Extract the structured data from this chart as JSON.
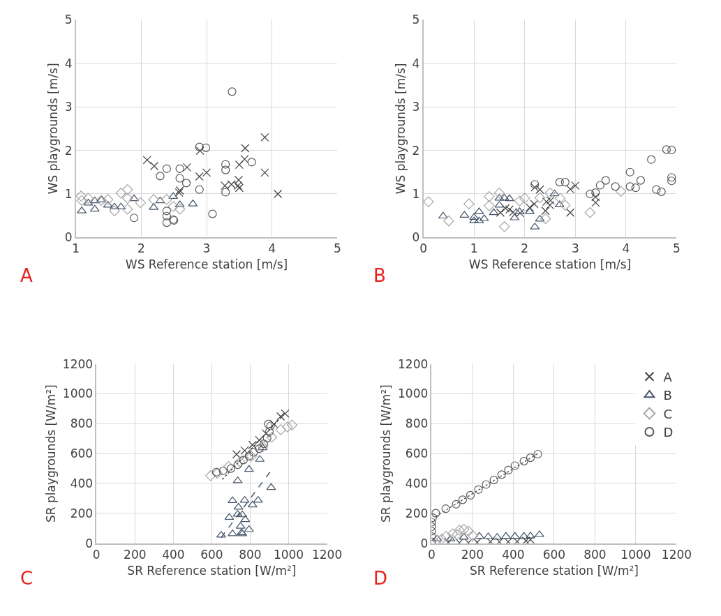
{
  "chart_data": [
    {
      "type": "scatter",
      "xlabel": "WS Reference station [m/s]",
      "ylabel": "WS playgrounds [m/s]",
      "annotations": [
        "A"
      ],
      "xlim": [
        1,
        5
      ],
      "xticks": [
        1,
        2,
        3,
        4,
        5
      ],
      "ylim": [
        0,
        5
      ],
      "yticks": [
        0,
        1,
        2,
        3,
        4,
        5
      ],
      "grid": true,
      "legend": false,
      "series": [
        {
          "marker": "cross",
          "color": "#404040",
          "x": [
            2.09,
            2.2,
            2.7,
            2.9,
            2.89,
            3.0,
            2.59,
            2.58,
            3.28,
            3.38,
            3.48,
            3.5,
            3.59,
            3.58,
            3.49,
            3.5,
            3.89,
            3.89,
            4.09
          ],
          "values": [
            1.78,
            1.64,
            1.61,
            1.99,
            1.4,
            1.49,
            1.08,
            1.03,
            1.19,
            1.22,
            1.19,
            1.67,
            2.05,
            1.8,
            1.32,
            1.14,
            2.3,
            1.49,
            1.0
          ]
        },
        {
          "marker": "triangle",
          "color": "#44546a",
          "x": [
            1.09,
            1.19,
            1.29,
            1.29,
            1.39,
            1.49,
            1.59,
            1.69,
            1.89,
            2.19,
            2.29,
            2.49,
            2.59,
            2.79
          ],
          "values": [
            0.61,
            0.79,
            0.84,
            0.65,
            0.86,
            0.74,
            0.7,
            0.7,
            0.89,
            0.69,
            0.84,
            0.94,
            0.75,
            0.77
          ]
        },
        {
          "marker": "diamond",
          "color": "#a6a6a6",
          "x": [
            1.08,
            1.09,
            1.19,
            1.39,
            1.49,
            1.59,
            1.69,
            1.79,
            1.79,
            1.79,
            1.99,
            2.19,
            2.39,
            2.49,
            2.59
          ],
          "values": [
            0.95,
            0.85,
            0.9,
            0.85,
            0.87,
            0.61,
            1.02,
            1.1,
            0.9,
            0.65,
            0.8,
            0.87,
            0.87,
            0.71,
            0.65
          ]
        },
        {
          "marker": "circle",
          "color": "#595959",
          "x": [
            3.39,
            2.89,
            2.99,
            2.39,
            2.29,
            2.59,
            2.59,
            2.69,
            2.89,
            3.29,
            3.29,
            3.69,
            3.29,
            3.09,
            2.39,
            2.39,
            2.39,
            2.49,
            2.5,
            1.89
          ],
          "values": [
            3.35,
            2.08,
            2.06,
            1.58,
            1.41,
            1.58,
            1.36,
            1.25,
            1.1,
            1.68,
            1.55,
            1.73,
            1.04,
            0.54,
            0.61,
            0.49,
            0.34,
            0.41,
            0.39,
            0.45
          ]
        }
      ]
    },
    {
      "type": "scatter",
      "xlabel": "WS Reference station [m/s]",
      "ylabel": "WS playgrounds [m/s]",
      "annotations": [
        "B"
      ],
      "xlim": [
        0,
        5
      ],
      "xticks": [
        0,
        1,
        2,
        3,
        4,
        5
      ],
      "ylim": [
        0,
        5
      ],
      "yticks": [
        0,
        1,
        2,
        3,
        4,
        5
      ],
      "grid": true,
      "legend": false,
      "series": [
        {
          "marker": "cross",
          "color": "#404040",
          "x": [
            2.2,
            2.3,
            3.0,
            2.9,
            2.9,
            3.4,
            3.4,
            1.52,
            1.62,
            1.77,
            1.91,
            2.1,
            2.19,
            2.41,
            2.43,
            2.51,
            2.5,
            1.7
          ],
          "values": [
            1.15,
            1.1,
            1.19,
            1.11,
            0.57,
            0.93,
            0.8,
            0.57,
            0.67,
            0.58,
            0.56,
            0.69,
            0.77,
            0.61,
            0.82,
            0.85,
            0.74,
            0.64
          ]
        },
        {
          "marker": "triangle",
          "color": "#44546a",
          "x": [
            0.39,
            0.81,
            1.0,
            1.1,
            1.0,
            1.1,
            1.2,
            1.39,
            1.5,
            1.6,
            1.7,
            1.5,
            1.8,
            1.9,
            2.1,
            2.2,
            2.3,
            2.59,
            2.69
          ],
          "values": [
            0.49,
            0.51,
            0.46,
            0.59,
            0.38,
            0.38,
            0.43,
            0.57,
            0.9,
            0.9,
            0.89,
            0.74,
            0.45,
            0.59,
            0.59,
            0.24,
            0.42,
            1.0,
            0.75
          ]
        },
        {
          "marker": "diamond",
          "color": "#a6a6a6",
          "x": [
            0.1,
            0.5,
            0.9,
            1.3,
            1.3,
            1.5,
            1.6,
            1.9,
            2.0,
            2.3,
            2.41,
            2.5,
            2.8,
            3.29,
            3.9,
            2.7
          ],
          "values": [
            0.82,
            0.38,
            0.77,
            0.94,
            0.73,
            1.02,
            0.25,
            0.84,
            0.9,
            0.91,
            0.43,
            1.02,
            0.74,
            0.57,
            1.06,
            0.9
          ]
        },
        {
          "marker": "circle",
          "color": "#595959",
          "x": [
            2.2,
            2.69,
            2.8,
            3.29,
            3.4,
            3.49,
            3.6,
            3.79,
            4.08,
            4.08,
            4.19,
            4.29,
            4.5,
            4.6,
            4.7,
            4.8,
            4.9,
            4.9,
            4.9
          ],
          "values": [
            1.22,
            1.27,
            1.27,
            1.0,
            1.03,
            1.2,
            1.31,
            1.17,
            1.5,
            1.17,
            1.14,
            1.31,
            1.79,
            1.1,
            1.05,
            2.02,
            2.01,
            1.38,
            1.3
          ]
        }
      ]
    },
    {
      "type": "scatter",
      "xlabel": "SR Reference station [W/m²]",
      "ylabel": "SR playgrounds [W/m²]",
      "annotations": [
        "C"
      ],
      "xlim": [
        0,
        1200
      ],
      "xticks": [
        0,
        200,
        400,
        600,
        800,
        1000,
        1200
      ],
      "ylim": [
        0,
        1200
      ],
      "yticks": [
        0,
        200,
        400,
        600,
        800,
        1000,
        1200
      ],
      "grid": true,
      "legend": false,
      "series": [
        {
          "marker": "cross",
          "color": "#404040",
          "x": [
            729,
            771,
            812,
            847,
            882,
            924,
            959,
            982
          ],
          "values": [
            595,
            620,
            658,
            690,
            734,
            797,
            848,
            867
          ]
        },
        {
          "marker": "triangle",
          "color": "#44546a",
          "x": [
            649,
            708,
            755,
            759,
            794,
            691,
            735,
            759,
            774,
            750,
            739,
            708,
            771,
            812,
            841,
            909,
            735,
            794,
            850,
            865
          ],
          "values": [
            54,
            63,
            70,
            63,
            92,
            173,
            194,
            190,
            158,
            114,
            241,
            285,
            287,
            256,
            287,
            373,
            418,
            494,
            561,
            639
          ]
        },
        {
          "marker": "diamond",
          "color": "#a6a6a6",
          "x": [
            594,
            629,
            688,
            747,
            806,
            865,
            912,
            959,
            1018,
            994
          ],
          "values": [
            452,
            468,
            513,
            544,
            582,
            646,
            709,
            759,
            791,
            778
          ]
        },
        {
          "marker": "circle",
          "color": "#595959",
          "x": [
            624,
            659,
            700,
            735,
            765,
            794,
            818,
            847,
            871,
            888,
            900,
            906,
            894
          ],
          "values": [
            475,
            484,
            500,
            525,
            557,
            582,
            608,
            633,
            665,
            703,
            747,
            785,
            797
          ]
        },
        {
          "type": "line",
          "line_style": "dashed",
          "marker": "none",
          "color": "#44546a",
          "x": [
            649,
            909
          ],
          "values": [
            38,
            487
          ]
        },
        {
          "type": "line",
          "line_style": "dotted",
          "marker": "none",
          "color": "#404040",
          "x": [
            655,
            975
          ],
          "values": [
            427,
            860
          ]
        }
      ]
    },
    {
      "type": "scatter",
      "xlabel": "SR Reference station [W/m²]",
      "ylabel": "SR playgrounds [W/m²]",
      "annotations": [
        "D"
      ],
      "xlim": [
        0,
        1200
      ],
      "xticks": [
        0,
        200,
        400,
        600,
        800,
        1000,
        1200
      ],
      "ylim": [
        0,
        1200
      ],
      "yticks": [
        0,
        200,
        400,
        600,
        800,
        1000,
        1200
      ],
      "grid": true,
      "legend": "top right",
      "series": [
        {
          "name": "A",
          "marker": "cross",
          "color": "#404040",
          "x": [
            82,
            136,
            180,
            223,
            288,
            332,
            375,
            419,
            462,
            484
          ],
          "values": [
            7,
            4,
            4,
            7,
            10,
            10,
            10,
            12,
            16,
            24
          ]
        },
        {
          "name": "B",
          "marker": "triangle",
          "color": "#44546a",
          "x": [
            27,
            92,
            158,
            234,
            277,
            321,
            364,
            408,
            452,
            484,
            528
          ],
          "values": [
            28,
            28,
            40,
            46,
            43,
            40,
            46,
            46,
            46,
            48,
            57
          ]
        },
        {
          "name": "C",
          "marker": "diamond",
          "color": "#a6a6a6",
          "x": [
            27,
            71,
            103,
            136,
            158,
            180,
            125,
            201,
            49
          ],
          "values": [
            22,
            46,
            63,
            87,
            93,
            81,
            57,
            51,
            28
          ]
        },
        {
          "name": "D",
          "marker": "circle",
          "color": "#595959",
          "x": [
            0,
            0,
            0,
            0,
            0,
            5,
            20,
            69,
            120,
            152,
            190,
            229,
            267,
            305,
            343,
            376,
            408,
            452,
            484,
            520
          ],
          "values": [
            10,
            45,
            81,
            111,
            141,
            171,
            201,
            231,
            261,
            291,
            321,
            359,
            393,
            423,
            459,
            489,
            519,
            549,
            572,
            596
          ]
        },
        {
          "type": "line",
          "line_style": "dotted",
          "marker": "none",
          "color": "#595959",
          "x": [
            20,
            520
          ],
          "values": [
            180,
            600
          ]
        }
      ]
    }
  ]
}
